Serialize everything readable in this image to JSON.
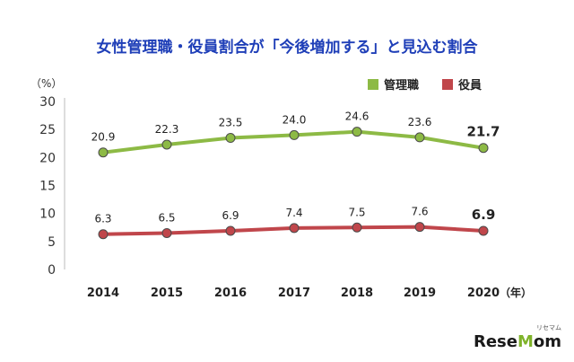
{
  "chart_data": {
    "type": "line",
    "title": "女性管理職・役員割合が「今後増加する」と見込む割合",
    "yunit": "（%）",
    "xunit": "（年）",
    "categories": [
      "2014",
      "2015",
      "2016",
      "2017",
      "2018",
      "2019",
      "2020"
    ],
    "yticks": [
      "0",
      "5",
      "10",
      "15",
      "20",
      "25",
      "30"
    ],
    "ylim": [
      0,
      30
    ],
    "grid": false,
    "legend_position": "top-right",
    "series": [
      {
        "name": "管理職",
        "color": "#8dba45",
        "values": [
          20.9,
          22.3,
          23.5,
          24.0,
          24.6,
          23.6,
          21.7
        ],
        "labels": [
          "20.9",
          "22.3",
          "23.5",
          "24.0",
          "24.6",
          "23.6",
          "21.7"
        ]
      },
      {
        "name": "役員",
        "color": "#c0464b",
        "values": [
          6.3,
          6.5,
          6.9,
          7.4,
          7.5,
          7.6,
          6.9
        ],
        "labels": [
          "6.3",
          "6.5",
          "6.9",
          "7.4",
          "7.5",
          "7.6",
          "6.9"
        ]
      }
    ]
  },
  "watermark": {
    "brand_a": "Rese",
    "brand_o": "M",
    "brand_b": "om",
    "kana": "リセマム"
  }
}
